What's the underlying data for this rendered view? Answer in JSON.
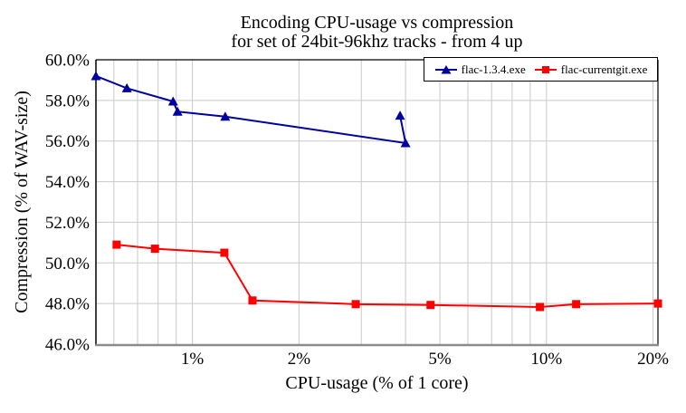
{
  "chart_data": {
    "type": "line",
    "title": "Encoding CPU-usage vs compression",
    "subtitle": "for set of 24bit-96khz tracks - from 4 up",
    "xlabel": "CPU-usage (% of 1 core)",
    "ylabel": "Compression (% of WAV-size)",
    "x_scale": "log",
    "xlim": [
      0.534,
      20.65
    ],
    "ylim": [
      46.0,
      60.0
    ],
    "grid": true,
    "legend_position": "top-right-inside",
    "x_ticks": [
      {
        "value": 1,
        "label": "1%"
      },
      {
        "value": 2,
        "label": "2%"
      },
      {
        "value": 5,
        "label": "5%"
      },
      {
        "value": 10,
        "label": "10%"
      },
      {
        "value": 20,
        "label": "20%"
      }
    ],
    "x_minor_gridlines": [
      0.6,
      0.7,
      0.8,
      0.9,
      3,
      4,
      6,
      7,
      8,
      9
    ],
    "y_ticks": [
      {
        "value": 46,
        "label": "46.0%"
      },
      {
        "value": 48,
        "label": "48.0%"
      },
      {
        "value": 50,
        "label": "50.0%"
      },
      {
        "value": 52,
        "label": "52.0%"
      },
      {
        "value": 54,
        "label": "54.0%"
      },
      {
        "value": 56,
        "label": "56.0%"
      },
      {
        "value": 58,
        "label": "58.0%"
      },
      {
        "value": 60,
        "label": "60.0%"
      }
    ],
    "series": [
      {
        "name": "flac-1.3.4.exe",
        "color": "#0000a0",
        "marker": "triangle",
        "points": [
          [
            0.534,
            59.2
          ],
          [
            0.653,
            58.6
          ],
          [
            0.882,
            57.95
          ],
          [
            0.908,
            57.45
          ],
          [
            1.238,
            57.2
          ],
          [
            4.0,
            55.9
          ],
          [
            3.86,
            57.25
          ]
        ]
      },
      {
        "name": "flac-currentgit.exe",
        "color": "#ff0000",
        "marker": "square",
        "points": [
          [
            0.611,
            50.9
          ],
          [
            0.784,
            50.7
          ],
          [
            1.231,
            50.5
          ],
          [
            1.478,
            48.15
          ],
          [
            2.893,
            47.97
          ],
          [
            4.707,
            47.93
          ],
          [
            9.585,
            47.83
          ],
          [
            12.13,
            47.97
          ],
          [
            20.65,
            48.0
          ]
        ]
      }
    ],
    "colors": {
      "grid": "#c9c9c9",
      "border": "#000000",
      "bottom_border": "#8c8c8c",
      "text": "#000000",
      "background": "#ffffff"
    }
  }
}
